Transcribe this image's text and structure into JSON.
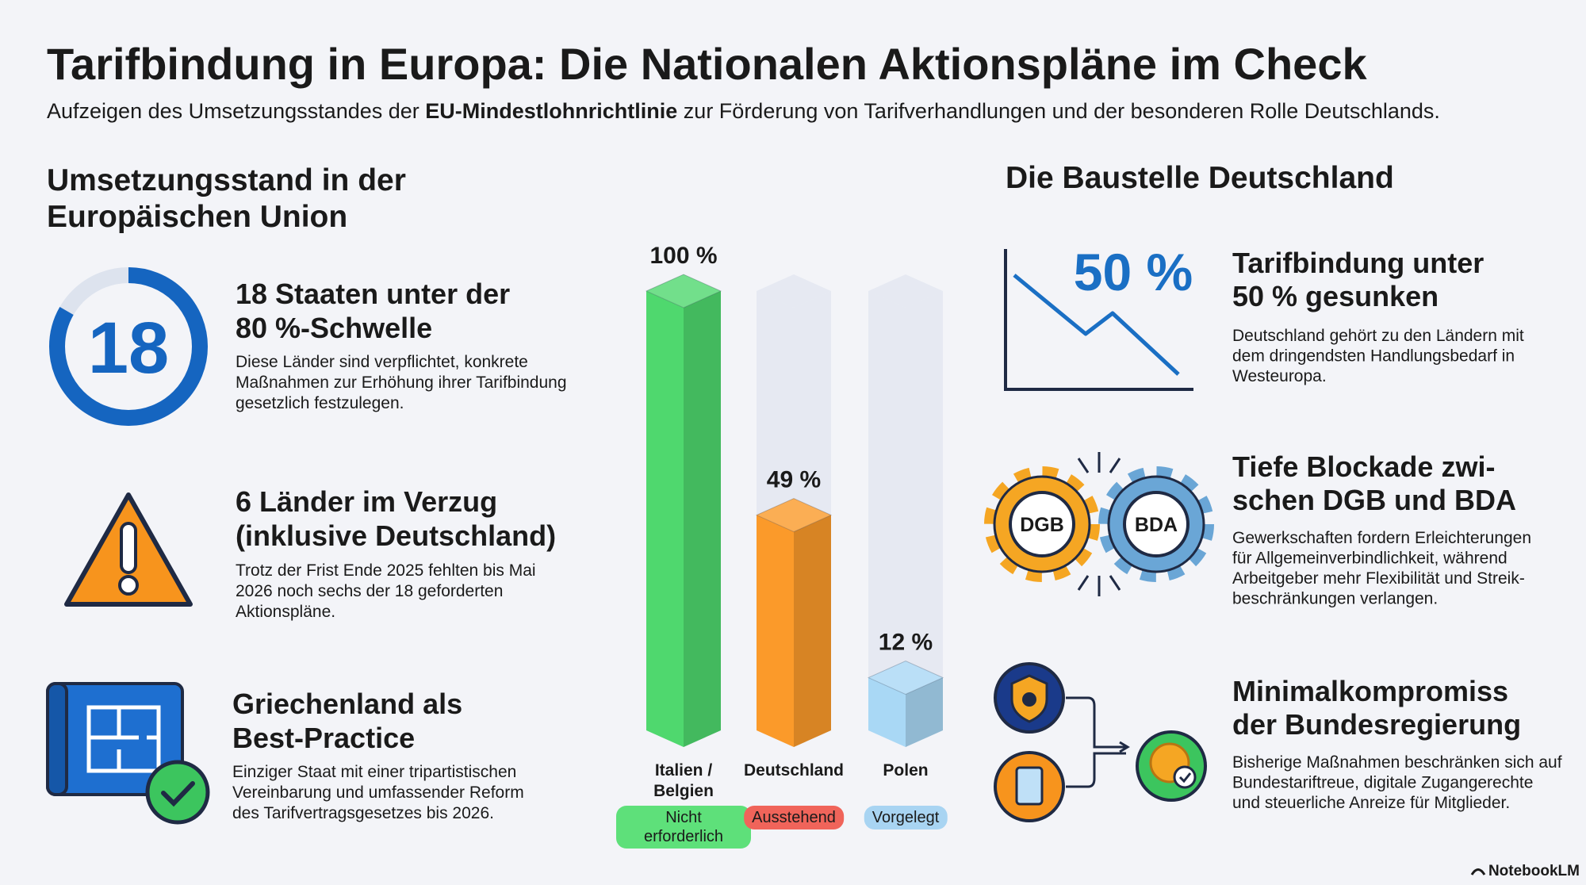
{
  "header": {
    "title": "Tarifbindung in Europa: Die Nationalen Aktionspläne im Check",
    "subtitle": [
      "Aufzeigen des Umsetzungsstandes der ",
      "EU-Mindestlohnrichtlinie",
      " zur Förderung von Tarifverhandlungen und der besonderen Rolle Deutschlands."
    ]
  },
  "left": {
    "heading": [
      "Umsetzungsstand in der",
      "Europäischen Union"
    ],
    "items": [
      {
        "icon_text": "18",
        "title": [
          "18 Staaten unter der",
          "80 %-Schwelle"
        ],
        "description": [
          "Diese Länder sind verpflichtet, konkrete",
          "Maßnahmen zur Erhöhung ihrer Tarifbindung",
          "gesetzlich festzulegen."
        ]
      },
      {
        "title": [
          "6 Länder im Verzug",
          "(inklusive Deutschland)"
        ],
        "description": [
          "Trotz der Frist Ende 2025 fehlten bis Mai",
          "2026 noch sechs der 18 geforderten",
          "Aktionspläne."
        ]
      },
      {
        "title": [
          "Griechenland als",
          "Best-Practice"
        ],
        "description": [
          "Einziger Staat mit einer tripartistischen",
          "Vereinbarung und umfassender Reform",
          "des Tarifvertragsgesetzes bis 2026."
        ]
      }
    ]
  },
  "chart_data": {
    "type": "bar",
    "categories": [
      "Italien / Belgien",
      "Deutschland",
      "Polen"
    ],
    "values": [
      100,
      49,
      12
    ],
    "value_labels": [
      "100 %",
      "49 %",
      "12 %"
    ],
    "colors": [
      "#4fd86e",
      "#fb9a2a",
      "#a9d8f5"
    ],
    "status_labels": [
      "Nicht erforderlich",
      "Ausstehend",
      "Vorgelegt"
    ],
    "status_colors": [
      "#5ee07a",
      "#f0645a",
      "#a8d4f2"
    ],
    "ylim": [
      0,
      100
    ]
  },
  "right": {
    "heading": "Die Baustelle Deutschland",
    "items": [
      {
        "icon_text": "50 %",
        "title": [
          "Tarifbindung unter",
          "50 % gesunken"
        ],
        "description": [
          "Deutschland gehört zu den Ländern mit",
          "dem dringendsten Handlungsbedarf in",
          "Westeuropa."
        ]
      },
      {
        "icon_labels": [
          "DGB",
          "BDA"
        ],
        "title": [
          "Tiefe Blockade zwi-",
          "schen DGB und BDA"
        ],
        "description": [
          "Gewerkschaften fordern Erleichterungen",
          "für Allgemeinverbindlichkeit, während",
          "Arbeitgeber mehr Flexibilität und Streik-",
          "beschränkungen verlangen."
        ]
      },
      {
        "title": [
          "Minimalkompromiss",
          "der Bundesregierung"
        ],
        "description": [
          "Bisherige Maßnahmen beschränken sich auf",
          "Bundestariftreue, digitale Zugangerechte",
          "und steuerliche Anreize für Mitglieder."
        ]
      }
    ]
  },
  "footer": {
    "brand": "NotebookLM"
  }
}
